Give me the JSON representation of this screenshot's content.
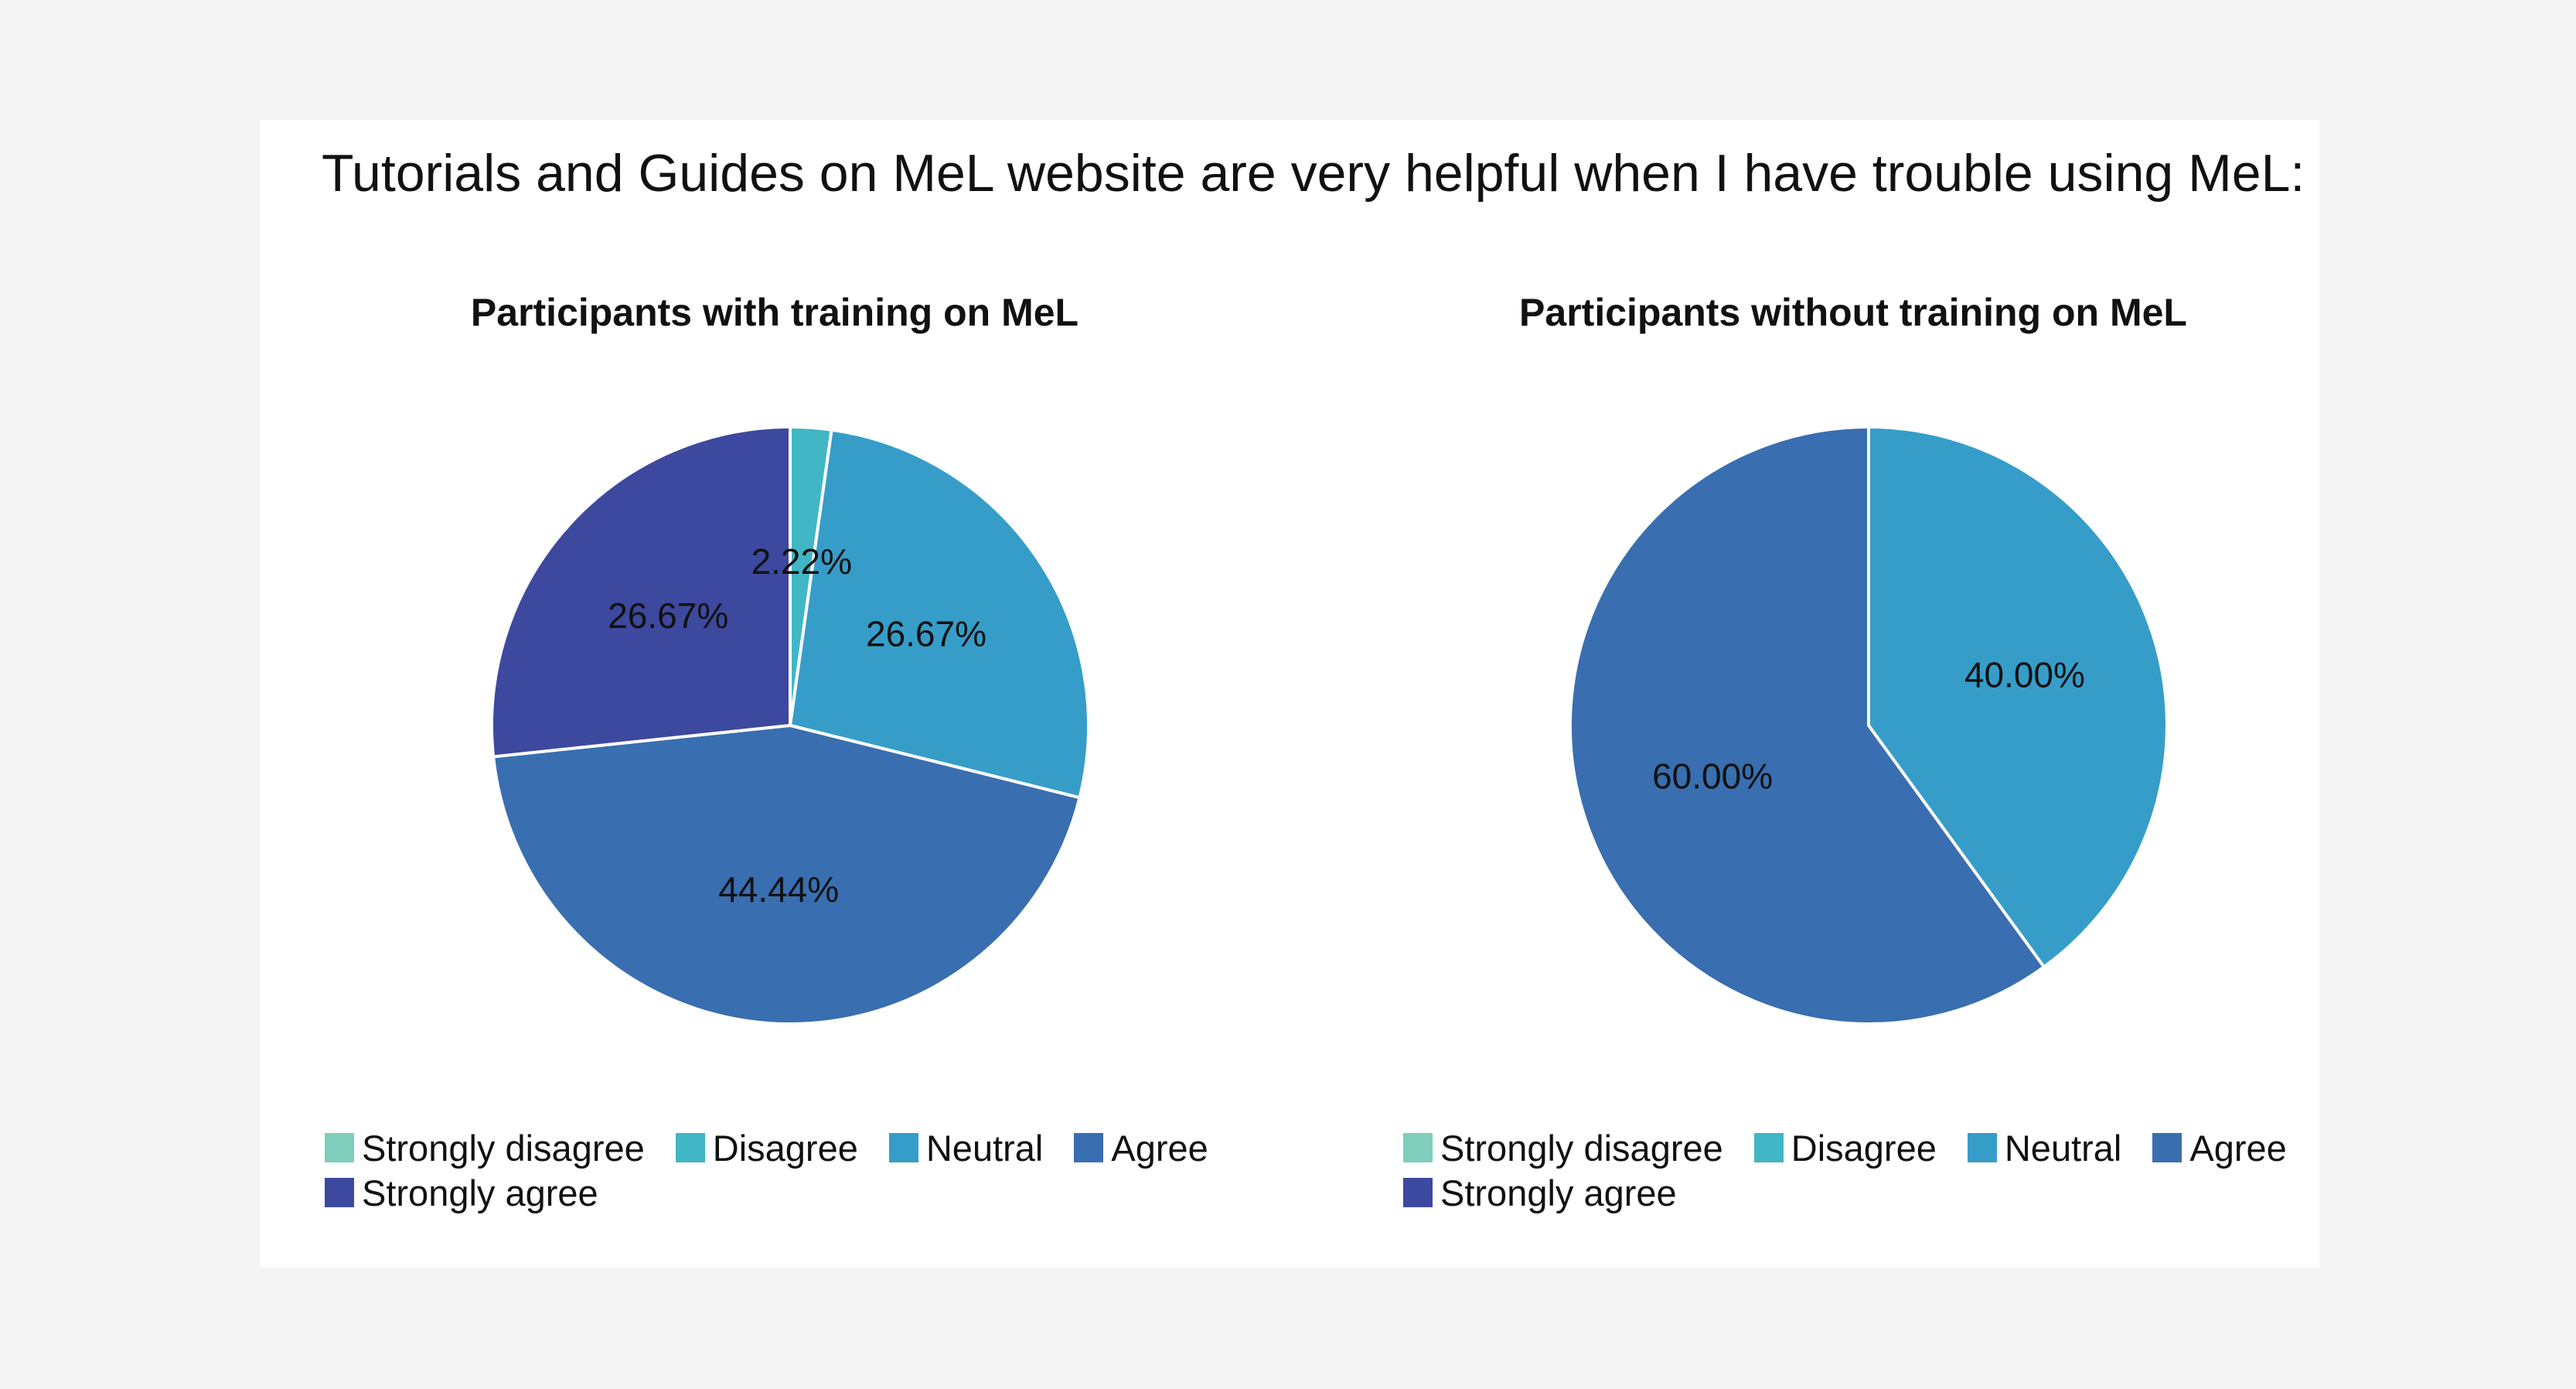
{
  "page_title": "Tutorials and Guides on MeL website are very helpful when I have trouble using MeL:",
  "chart_data": [
    {
      "type": "pie",
      "title": "Participants with training on MeL",
      "categories": [
        "Strongly disagree",
        "Disagree",
        "Neutral",
        "Agree",
        "Strongly agree"
      ],
      "values": [
        0,
        2.22,
        26.67,
        44.44,
        26.67
      ],
      "labels": [
        "",
        "2.22%",
        "26.67%",
        "44.44%",
        "26.67%"
      ],
      "colors": [
        "#7fcdbb",
        "#41b6c4",
        "#369dc9",
        "#396eb0",
        "#3d489f"
      ],
      "legend_position": "bottom"
    },
    {
      "type": "pie",
      "title": "Participants without training on MeL",
      "categories": [
        "Strongly disagree",
        "Disagree",
        "Neutral",
        "Agree",
        "Strongly agree"
      ],
      "values": [
        0,
        0,
        40.0,
        60.0,
        0
      ],
      "labels": [
        "",
        "",
        "40.00%",
        "60.00%",
        ""
      ],
      "colors": [
        "#7fcdbb",
        "#41b6c4",
        "#369dc9",
        "#396eb0",
        "#3d489f"
      ],
      "legend_position": "bottom"
    }
  ]
}
